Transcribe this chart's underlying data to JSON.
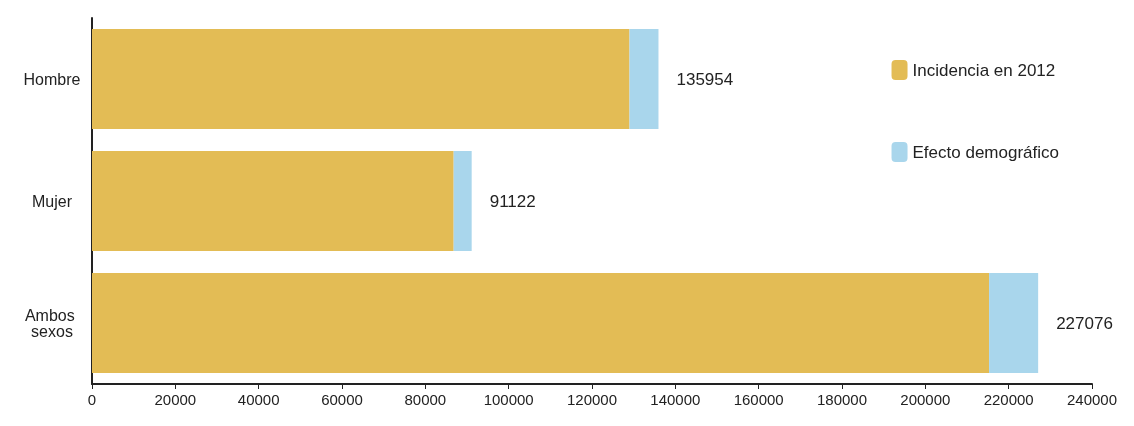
{
  "chart_data": {
    "type": "bar",
    "orientation": "horizontal",
    "stacked": true,
    "categories": [
      "Hombre",
      "Mujer",
      "Ambos sexos"
    ],
    "series": [
      {
        "name": "Incidencia en 2012",
        "color": "#e3bc55",
        "values": [
          129000,
          86800,
          215300
        ]
      },
      {
        "name": "Efecto demográfico",
        "color": "#a9d6ec",
        "values": [
          6954,
          4322,
          11776
        ]
      }
    ],
    "totals": [
      "135954",
      "91122",
      "227076"
    ],
    "xlim": [
      0,
      240000
    ],
    "xticks": [
      0,
      20000,
      40000,
      60000,
      80000,
      100000,
      120000,
      140000,
      160000,
      180000,
      200000,
      220000,
      240000
    ],
    "grid": false,
    "legend": "top right"
  }
}
